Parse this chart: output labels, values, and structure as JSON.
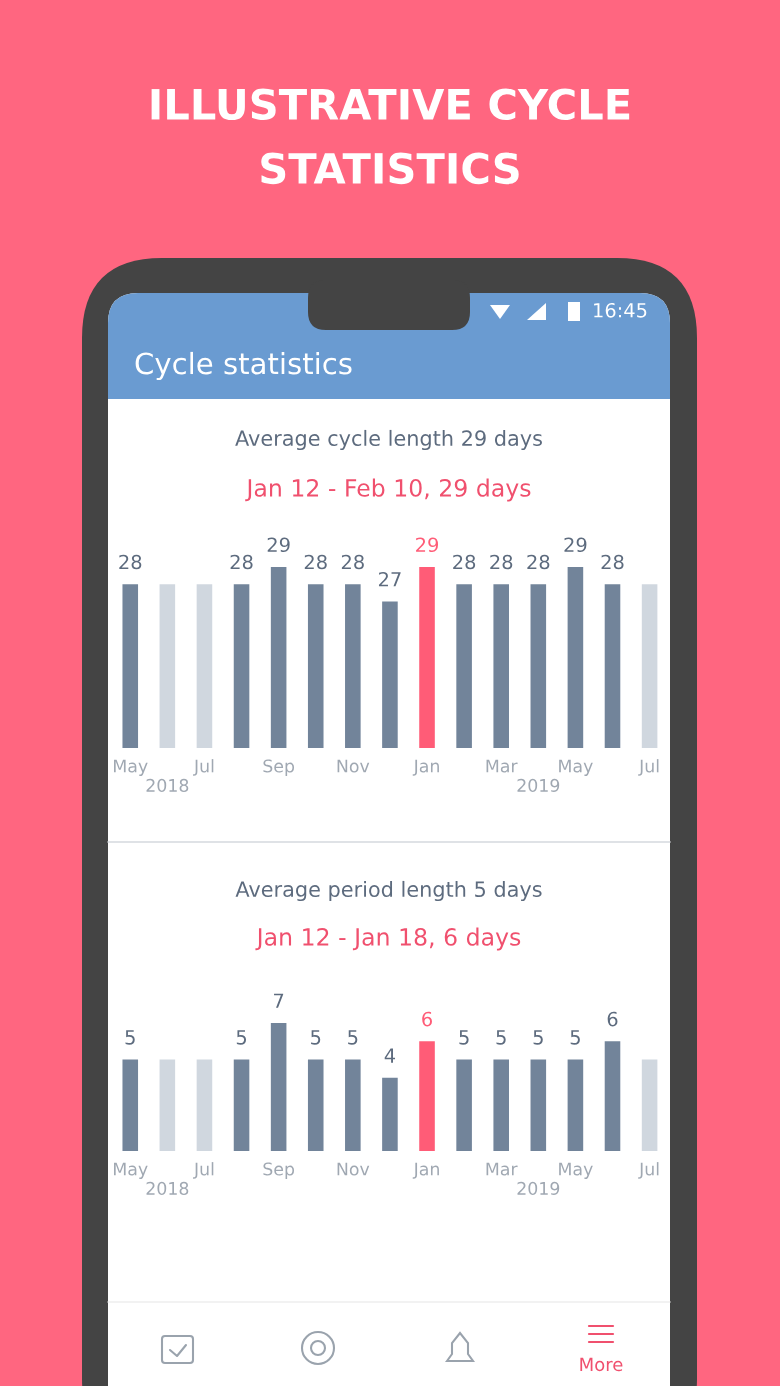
{
  "chart_data": [
    {
      "type": "other",
      "annotations": [
        "ILLUSTRATIVE CYCLE\nSTATISTICS",
        "16:45",
        "Cycle statistics",
        "More"
      ]
    },
    {
      "type": "bar",
      "title": "Average cycle length 29 days",
      "subtitle": "Jan 12 - Feb 10, 29 days",
      "categories": [
        "May",
        "\n2018",
        "Jul",
        null,
        "Sep",
        null,
        "Nov",
        null,
        "Jan",
        null,
        "Mar",
        "\n2019",
        "May",
        null,
        "Jul"
      ],
      "values": [
        28,
        28,
        28,
        28,
        29,
        28,
        28,
        27,
        29,
        28,
        28,
        28,
        29,
        28,
        28
      ],
      "value_labels": [
        "28",
        null,
        null,
        "28",
        "29",
        "28",
        "28",
        "27",
        "29",
        "28",
        "28",
        "28",
        "29",
        "28",
        null
      ],
      "colors": [
        "#72849a",
        "#d0d7df",
        "#d0d7df",
        "#72849a",
        "#72849a",
        "#72849a",
        "#72849a",
        "#72849a",
        "#ff5c77",
        "#72849a",
        "#72849a",
        "#72849a",
        "#72849a",
        "#72849a",
        "#d0d7df"
      ],
      "ylim": [
        18.5,
        29
      ],
      "grid": false,
      "legend": false
    },
    {
      "type": "bar",
      "title": "Average period length 5 days",
      "subtitle": "Jan 12 - Jan 18, 6 days",
      "categories": [
        "May",
        "\n2018",
        "Jul",
        null,
        "Sep",
        null,
        "Nov",
        null,
        "Jan",
        null,
        "Mar",
        "\n2019",
        "May",
        null,
        "Jul"
      ],
      "values": [
        5,
        5,
        5,
        5,
        7,
        5,
        5,
        4,
        6,
        5,
        5,
        5,
        5,
        6,
        5
      ],
      "value_labels": [
        "5",
        null,
        null,
        "5",
        "7",
        "5",
        "5",
        "4",
        "6",
        "5",
        "5",
        "5",
        "5",
        "6",
        null
      ],
      "colors": [
        "#72849a",
        "#d0d7df",
        "#d0d7df",
        "#72849a",
        "#72849a",
        "#72849a",
        "#72849a",
        "#72849a",
        "#ff5c77",
        "#72849a",
        "#72849a",
        "#72849a",
        "#72849a",
        "#72849a",
        "#d0d7df"
      ],
      "ylim": [
        0,
        7
      ],
      "grid": false,
      "legend": false
    }
  ]
}
